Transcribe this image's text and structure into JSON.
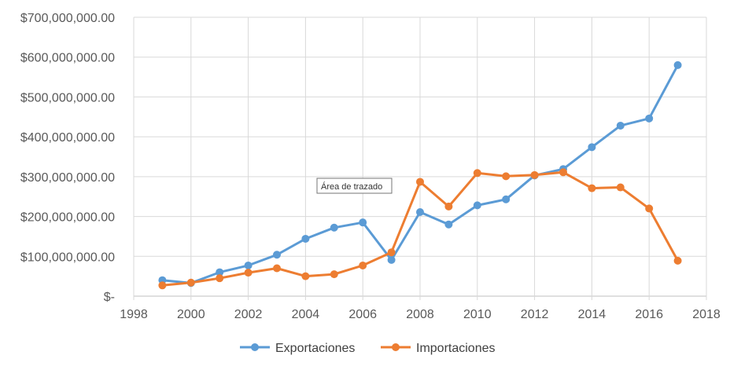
{
  "chart_data": {
    "type": "line",
    "title": "",
    "xlabel": "",
    "ylabel": "",
    "xlim": [
      1998,
      2018
    ],
    "ylim": [
      0,
      700000000
    ],
    "x_ticks": [
      "1998",
      "2000",
      "2002",
      "2004",
      "2006",
      "2008",
      "2010",
      "2012",
      "2014",
      "2016",
      "2018"
    ],
    "y_ticks": [
      "$-",
      "$100,000,000.00",
      "$200,000,000.00",
      "$300,000,000.00",
      "$400,000,000.00",
      "$500,000,000.00",
      "$600,000,000.00",
      "$700,000,000.00"
    ],
    "grid": "vertical and horizontal",
    "legend_position": "bottom",
    "x": [
      1999,
      2000,
      2001,
      2002,
      2003,
      2004,
      2005,
      2006,
      2007,
      2008,
      2009,
      2010,
      2011,
      2012,
      2013,
      2014,
      2015,
      2016,
      2017
    ],
    "series": [
      {
        "name": "Exportaciones",
        "color": "#5B9BD5",
        "values": [
          40000000,
          33000000,
          60000000,
          77000000,
          104000000,
          144000000,
          172000000,
          185000000,
          91000000,
          211000000,
          180000000,
          228000000,
          243000000,
          303000000,
          319000000,
          374000000,
          428000000,
          446000000,
          580000000
        ]
      },
      {
        "name": "Importaciones",
        "color": "#ED7D31",
        "values": [
          27000000,
          34000000,
          45000000,
          59000000,
          70000000,
          50000000,
          55000000,
          77000000,
          110000000,
          287000000,
          225000000,
          309000000,
          301000000,
          304000000,
          311000000,
          271000000,
          273000000,
          220000000,
          89000000
        ]
      }
    ]
  },
  "tooltip": {
    "text": "Área de trazado"
  }
}
